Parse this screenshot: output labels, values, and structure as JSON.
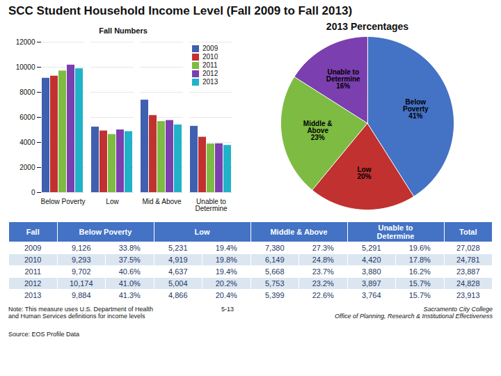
{
  "title": "SCC Student Household Income Level (Fall 2009 to Fall 2013)",
  "chart_data": [
    {
      "type": "bar",
      "title": "Fall Numbers",
      "categories": [
        "Below Poverty",
        "Low",
        "Mid & Above",
        "Unable to\nDetermine"
      ],
      "series": [
        {
          "name": "2009",
          "color": "#3F5FAF",
          "values": [
            9126,
            5231,
            7380,
            5291
          ]
        },
        {
          "name": "2010",
          "color": "#C0312F",
          "values": [
            9293,
            4919,
            6149,
            4420
          ]
        },
        {
          "name": "2011",
          "color": "#7DBB42",
          "values": [
            9702,
            4637,
            5668,
            3880
          ]
        },
        {
          "name": "2012",
          "color": "#7B3FAF",
          "values": [
            10174,
            5004,
            5753,
            3897
          ]
        },
        {
          "name": "2013",
          "color": "#20B2C8",
          "values": [
            9884,
            4866,
            5399,
            3764
          ]
        }
      ],
      "ylim": [
        0,
        12000
      ],
      "yticks": [
        0,
        2000,
        4000,
        6000,
        8000,
        10000,
        12000
      ],
      "grid": true,
      "legend": "upper right"
    },
    {
      "type": "pie",
      "title": "2013 Percentages",
      "categories": [
        "Below\nPoverty",
        "Low",
        "Middle &\nAbove",
        "Unable to\nDetermine"
      ],
      "values": [
        41,
        20,
        23,
        16
      ],
      "value_labels": [
        "41%",
        "20%",
        "23%",
        "16%"
      ],
      "data_labels": true,
      "colors": [
        "#4472C4",
        "#C0312F",
        "#7DBB42",
        "#7B3FAF"
      ]
    }
  ],
  "table": {
    "header": [
      "Fall",
      "Below Poverty",
      "Low",
      "Middle & Above",
      "Unable to\nDetermine",
      "Total"
    ],
    "rows": [
      [
        "2009",
        "9,126",
        "33.8%",
        "5,231",
        "19.4%",
        "7,380",
        "27.3%",
        "5,291",
        "19.6%",
        "27,028"
      ],
      [
        "2010",
        "9,293",
        "37.5%",
        "4,919",
        "19.8%",
        "6,149",
        "24.8%",
        "4,420",
        "17.8%",
        "24,781"
      ],
      [
        "2011",
        "9,702",
        "40.6%",
        "4,637",
        "19.4%",
        "5,668",
        "23.7%",
        "3,880",
        "16.2%",
        "23,887"
      ],
      [
        "2012",
        "10,174",
        "41.0%",
        "5,004",
        "20.2%",
        "5,753",
        "23.2%",
        "3,897",
        "15.7%",
        "24,828"
      ],
      [
        "2013",
        "9,884",
        "41.3%",
        "4,866",
        "20.4%",
        "5,399",
        "22.6%",
        "3,764",
        "15.7%",
        "23,913"
      ]
    ],
    "header_color": "#4472C4",
    "row_alt_color": "#DCE6F1"
  },
  "annotations": [
    "Note: This measure uses U.S. Department of Health",
    "and Human Services definitions for income levels",
    "5-13",
    "Source: EOS Profile Data",
    "Sacramento City College",
    "Office of Planning, Research & Institutional Effectiveness"
  ]
}
